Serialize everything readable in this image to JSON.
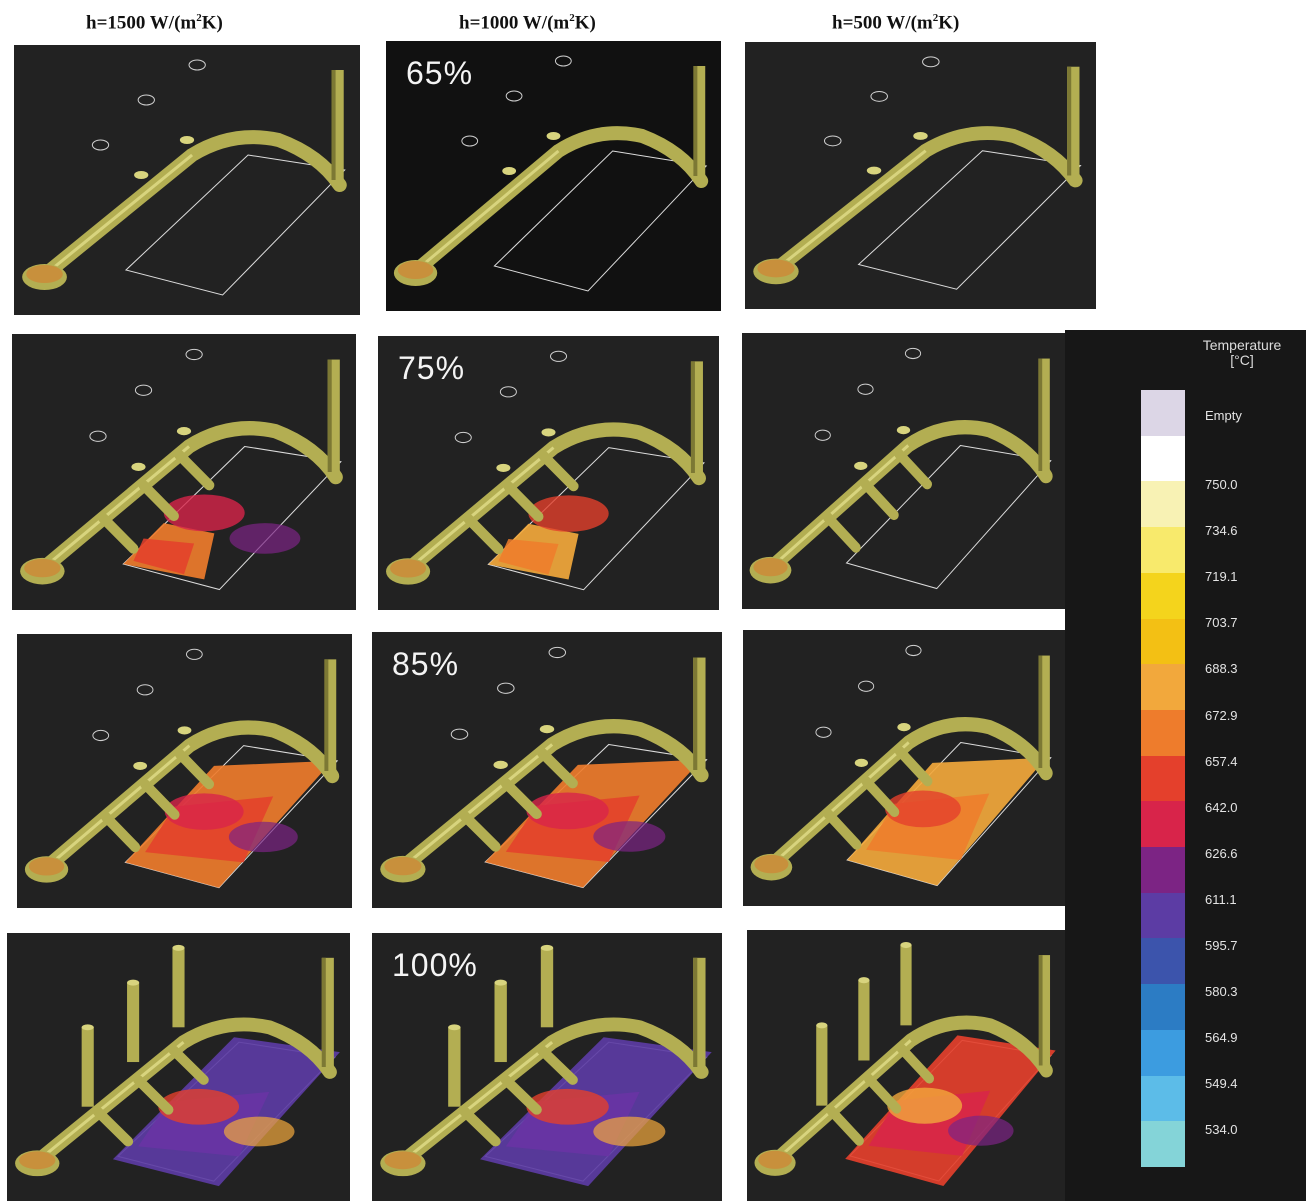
{
  "columns": [
    {
      "h": "h=1500 W/(m",
      "sup": "2",
      "tail": "K)"
    },
    {
      "h": "h=1000 W/(m",
      "sup": "2",
      "tail": "K)"
    },
    {
      "h": "h=500 W/(m",
      "sup": "2",
      "tail": "K)"
    }
  ],
  "rows": [
    {
      "percent": "65%"
    },
    {
      "percent": "75%"
    },
    {
      "percent": "85%"
    },
    {
      "percent": "100%"
    }
  ],
  "legend": {
    "title_line1": "Temperature",
    "title_line2": "[°C]",
    "empty_label": "Empty",
    "values": [
      "750.0",
      "734.6",
      "719.1",
      "703.7",
      "688.3",
      "672.9",
      "657.4",
      "642.0",
      "626.6",
      "611.1",
      "595.7",
      "580.3",
      "564.9",
      "549.4",
      "534.0"
    ],
    "colors": [
      "#dcd6e6",
      "#ffffff",
      "#f8f2b4",
      "#f8ea6c",
      "#f4d41c",
      "#f3c014",
      "#f2a83c",
      "#ee7c2c",
      "#e4402c",
      "#d8244a",
      "#7c2484",
      "#5c3ca4",
      "#3c54ac",
      "#2c7cc4",
      "#3c9ce0",
      "#5cbce8",
      "#84d4d8"
    ]
  }
}
